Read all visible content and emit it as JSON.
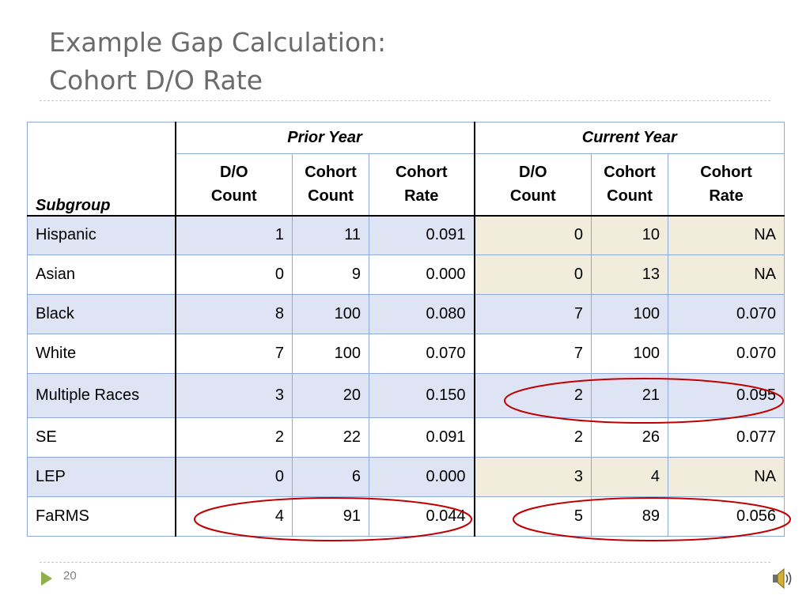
{
  "title": {
    "line1": "Example Gap Calculation:",
    "line2": "Cohort D/O Rate"
  },
  "table": {
    "group_headers": {
      "prior": "Prior Year",
      "current": "Current Year"
    },
    "columns": {
      "subgroup": "Subgroup",
      "do_count_1": "D/O",
      "do_count_2": "Count",
      "cohort_count_1": "Cohort",
      "cohort_count_2": "Count",
      "cohort_rate_1": "Cohort",
      "cohort_rate_2": "Rate"
    },
    "rows": [
      {
        "subgroup": "Hispanic",
        "prior": [
          "1",
          "11",
          "0.091"
        ],
        "current": [
          "0",
          "10",
          "NA"
        ]
      },
      {
        "subgroup": "Asian",
        "prior": [
          "0",
          "9",
          "0.000"
        ],
        "current": [
          "0",
          "13",
          "NA"
        ]
      },
      {
        "subgroup": "Black",
        "prior": [
          "8",
          "100",
          "0.080"
        ],
        "current": [
          "7",
          "100",
          "0.070"
        ]
      },
      {
        "subgroup": "White",
        "prior": [
          "7",
          "100",
          "0.070"
        ],
        "current": [
          "7",
          "100",
          "0.070"
        ]
      },
      {
        "subgroup": "Multiple Races",
        "prior": [
          "3",
          "20",
          "0.150"
        ],
        "current": [
          "2",
          "21",
          "0.095"
        ]
      },
      {
        "subgroup": "SE",
        "prior": [
          "2",
          "22",
          "0.091"
        ],
        "current": [
          "2",
          "26",
          "0.077"
        ]
      },
      {
        "subgroup": "LEP",
        "prior": [
          "0",
          "6",
          "0.000"
        ],
        "current": [
          "3",
          "4",
          "NA"
        ]
      },
      {
        "subgroup": "FaRMS",
        "prior": [
          "4",
          "91",
          "0.044"
        ],
        "current": [
          "5",
          "89",
          "0.056"
        ]
      }
    ]
  },
  "footer": {
    "page_number": "20"
  },
  "icons": {
    "nav": "play-arrow-icon",
    "audio": "speaker-icon"
  },
  "colors": {
    "title": "#6b6b6b",
    "band": "#dfe4f5",
    "highlight": "#f2ecdc",
    "oval": "#c00000",
    "nav_arrow": "#8faf4a"
  }
}
